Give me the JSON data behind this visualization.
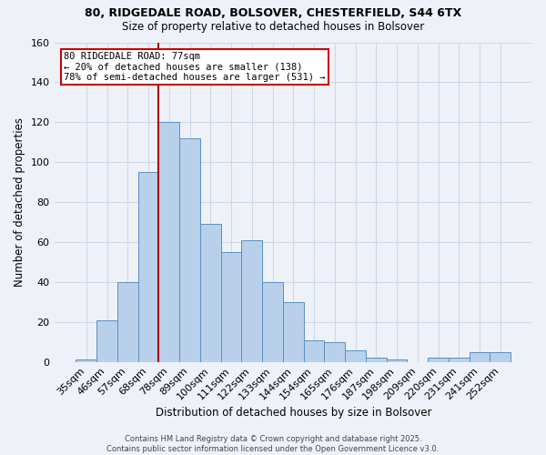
{
  "title1": "80, RIDGEDALE ROAD, BOLSOVER, CHESTERFIELD, S44 6TX",
  "title2": "Size of property relative to detached houses in Bolsover",
  "xlabel": "Distribution of detached houses by size in Bolsover",
  "ylabel": "Number of detached properties",
  "bar_labels": [
    "35sqm",
    "46sqm",
    "57sqm",
    "68sqm",
    "78sqm",
    "89sqm",
    "100sqm",
    "111sqm",
    "122sqm",
    "133sqm",
    "144sqm",
    "154sqm",
    "165sqm",
    "176sqm",
    "187sqm",
    "198sqm",
    "209sqm",
    "220sqm",
    "231sqm",
    "241sqm",
    "252sqm"
  ],
  "bar_values": [
    1,
    21,
    40,
    95,
    120,
    112,
    69,
    55,
    61,
    40,
    30,
    11,
    10,
    6,
    2,
    1,
    0,
    2,
    2,
    5,
    5
  ],
  "bar_color": "#b8d0ea",
  "bar_edge_color": "#5a8fc2",
  "grid_color": "#ccd8e8",
  "background_color": "#eef2f8",
  "vline_color": "#aa0000",
  "annotation_text": "80 RIDGEDALE ROAD: 77sqm\n← 20% of detached houses are smaller (138)\n78% of semi-detached houses are larger (531) →",
  "annotation_box_color": "#ffffff",
  "annotation_box_edge": "#cc0000",
  "footer_text": "Contains HM Land Registry data © Crown copyright and database right 2025.\nContains public sector information licensed under the Open Government Licence v3.0.",
  "ylim": [
    0,
    160
  ],
  "yticks": [
    0,
    20,
    40,
    60,
    80,
    100,
    120,
    140,
    160
  ],
  "vline_bar_index": 4
}
